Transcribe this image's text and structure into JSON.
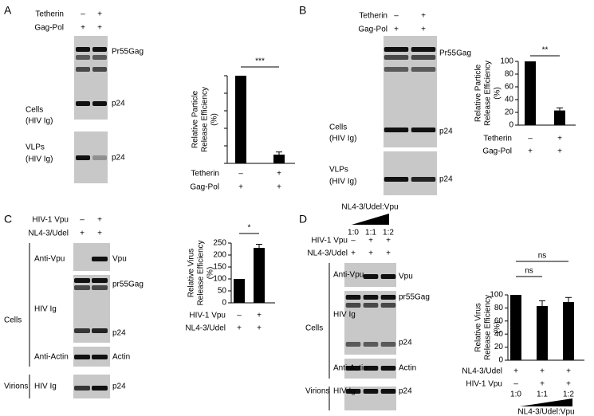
{
  "panels": [
    {
      "letter": "A",
      "header": [
        {
          "label": "Tetherin",
          "marks": [
            "–",
            "+"
          ]
        },
        {
          "label": "Gag-Pol",
          "marks": [
            "+",
            "+"
          ]
        }
      ],
      "labels": [
        "Pr55Gag",
        "Cells",
        "(HIV Ig)",
        "p24",
        "VLPs",
        "(HIV Ig)",
        "p24"
      ]
    },
    {
      "letter": "B",
      "header": [
        {
          "label": "Tetherin",
          "marks": [
            "–",
            "+"
          ]
        },
        {
          "label": "Gag-Pol",
          "marks": [
            "+",
            "+"
          ]
        }
      ],
      "labels": [
        "Pr55Gag",
        "Cells",
        "(HIV Ig)",
        "p24",
        "VLPs",
        "(HIV Ig)",
        "p24"
      ]
    },
    {
      "letter": "C",
      "header": [
        {
          "label": "HIV-1 Vpu",
          "marks": [
            "–",
            "+"
          ]
        },
        {
          "label": "NL4-3/Udel",
          "marks": [
            "+",
            "+"
          ]
        }
      ],
      "labels": [
        "Anti-Vpu",
        "Vpu",
        "HIV Ig",
        "pr55Gag",
        "p24",
        "Anti-Actin",
        "Actin",
        "Cells",
        "Virions",
        "HIV Ig",
        "p24"
      ]
    },
    {
      "letter": "D",
      "wedge_label": "NL4-3/Udel:Vpu",
      "ratios": [
        "1:0",
        "1:1",
        "1:2"
      ],
      "header": [
        {
          "label": "HIV-1 Vpu",
          "marks": [
            "–",
            "+",
            "+"
          ]
        },
        {
          "label": "NL4-3/Udel",
          "marks": [
            "+",
            "+",
            "+"
          ]
        }
      ],
      "labels": [
        "Anti-Vpu",
        "Vpu",
        "HIV Ig",
        "pr55Gag",
        "p24",
        "Anti-Actin",
        "Actin",
        "Cells",
        "Virions",
        "HIV Ig",
        "p24"
      ]
    }
  ],
  "chart_data": [
    {
      "type": "bar",
      "ylabel": [
        "Relative Particle",
        "Release Efficiency",
        "(%)"
      ],
      "values": [
        100,
        10
      ],
      "errors": [
        null,
        3
      ],
      "ylim": [
        0,
        100
      ],
      "yticks": [
        0,
        20,
        40,
        60,
        80,
        100
      ],
      "tick_labels": false,
      "color": "#000000",
      "significance": [
        "***"
      ],
      "conditions": [
        {
          "label": "Tetherin",
          "marks": [
            "–",
            "+"
          ]
        },
        {
          "label": "Gag-Pol",
          "marks": [
            "+",
            "+"
          ]
        }
      ]
    },
    {
      "type": "bar",
      "ylabel": [
        "Relative Particle",
        "Release Efficiency",
        "(%)"
      ],
      "values": [
        100,
        23
      ],
      "errors": [
        null,
        4
      ],
      "ylim": [
        0,
        100
      ],
      "yticks": [
        0,
        20,
        40,
        60,
        80,
        100
      ],
      "tick_labels": true,
      "color": "#000000",
      "significance": [
        "**"
      ],
      "conditions": [
        {
          "label": "Tetherin",
          "marks": [
            "–",
            "+"
          ]
        },
        {
          "label": "Gag-Pol",
          "marks": [
            "+",
            "+"
          ]
        }
      ]
    },
    {
      "type": "bar",
      "ylabel": [
        "Relative Virus",
        "Release Efficiency",
        "(%)"
      ],
      "values": [
        100,
        230
      ],
      "errors": [
        null,
        15
      ],
      "ylim": [
        0,
        250
      ],
      "yticks": [
        0,
        50,
        100,
        150,
        200,
        250
      ],
      "tick_labels": true,
      "color": "#000000",
      "significance": [
        "*"
      ],
      "conditions": [
        {
          "label": "HIV-1 Vpu",
          "marks": [
            "–",
            "+"
          ]
        },
        {
          "label": "NL4-3/Udel",
          "marks": [
            "+",
            "+"
          ]
        }
      ]
    },
    {
      "type": "bar",
      "ylabel": [
        "Relative Virus",
        "Release Efficiency",
        "(%)"
      ],
      "values": [
        100,
        83,
        89
      ],
      "errors": [
        null,
        8,
        7
      ],
      "ylim": [
        0,
        100
      ],
      "yticks": [
        0,
        20,
        40,
        60,
        80,
        100
      ],
      "tick_labels": true,
      "color": "#000000",
      "significance": [
        "ns",
        "ns"
      ],
      "conditions": [
        {
          "label": "NL4-3/Udel",
          "marks": [
            "+",
            "+",
            "+"
          ]
        },
        {
          "label": "HIV-1 Vpu",
          "marks": [
            "–",
            "+",
            "+"
          ]
        }
      ],
      "ratios": [
        "1:0",
        "1:1",
        "1:2"
      ],
      "wedge_label": "NL4-3/Udel:Vpu"
    }
  ]
}
